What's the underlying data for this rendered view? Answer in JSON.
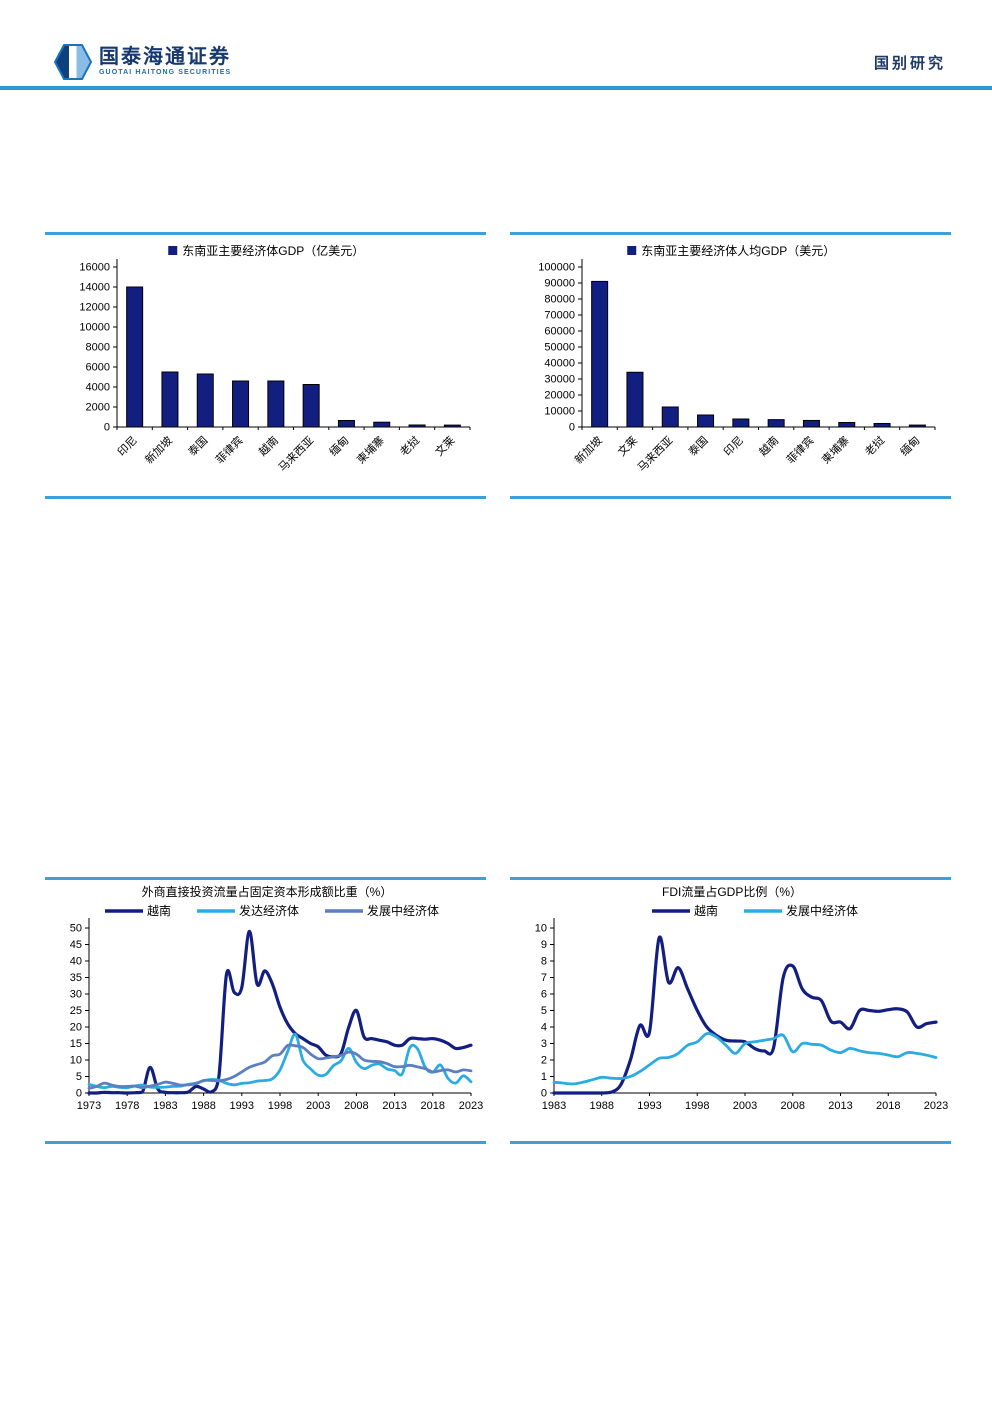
{
  "header": {
    "logo_title": "国泰海通证券",
    "logo_subtitle": "GUOTAI HAITONG SECURITIES",
    "section_label": "国别研究"
  },
  "colors": {
    "navy": "#131f80",
    "cyan": "#2aace2",
    "steel_blue": "#5b7fc0",
    "chart_border": "#3f9fd8",
    "header_rule": "#2c99d5",
    "header_text": "#1f3a68",
    "logo_text": "#16396e",
    "logo_subtext": "#1d6bb5"
  },
  "chart_data": [
    {
      "id": "gdp-bar",
      "type": "bar",
      "legend": "东南亚主要经济体GDP（亿美元）",
      "categories": [
        "印尼",
        "新加坡",
        "泰国",
        "菲律宾",
        "越南",
        "马来西亚",
        "缅甸",
        "柬埔寨",
        "老挝",
        "文莱"
      ],
      "values": [
        14000,
        5500,
        5300,
        4600,
        4600,
        4250,
        650,
        480,
        200,
        190
      ],
      "ylim": [
        0,
        16000
      ],
      "ytick_step": 2000,
      "bar_color_key": "navy",
      "grid": false,
      "legend_position": "top"
    },
    {
      "id": "gdp-per-capita-bar",
      "type": "bar",
      "legend": "东南亚主要经济体人均GDP（美元）",
      "categories": [
        "新加坡",
        "文莱",
        "马来西亚",
        "泰国",
        "印尼",
        "越南",
        "菲律宾",
        "柬埔寨",
        "老挝",
        "缅甸"
      ],
      "values": [
        91000,
        34200,
        12500,
        7500,
        5000,
        4600,
        4100,
        2800,
        2200,
        1200
      ],
      "ylim": [
        0,
        100000
      ],
      "ytick_step": 10000,
      "bar_color_key": "navy",
      "grid": false,
      "legend_position": "top"
    },
    {
      "id": "fdi-gfcf-line",
      "type": "line",
      "title": "外商直接投资流量占固定资本形成额比重（%）",
      "x_start": 1973,
      "x_end": 2023,
      "xtick_step": 5,
      "xtick_labels": [
        "1973",
        "1978",
        "1983",
        "1988",
        "1993",
        "1998",
        "2003",
        "2008",
        "2013",
        "2018",
        "2023"
      ],
      "ylim": [
        0,
        50
      ],
      "ytick_step": 5,
      "grid": false,
      "legend_position": "top",
      "series": [
        {
          "name": "越南",
          "color_key": "navy",
          "values": [
            0,
            0,
            0.2,
            0.1,
            0.1,
            0,
            0.1,
            0.3,
            7.8,
            1.2,
            0.2,
            0.1,
            0.1,
            0.3,
            2,
            1.2,
            0.3,
            5,
            36,
            30.5,
            32,
            49,
            33,
            37,
            33,
            26,
            21,
            18,
            16.5,
            15,
            14,
            11.5,
            11,
            12,
            20,
            25,
            17,
            16.5,
            16,
            15.5,
            14.5,
            14.5,
            16.5,
            16.5,
            16.3,
            16.5,
            16,
            15,
            13.5,
            13.8,
            14.5
          ]
        },
        {
          "name": "发达经济体",
          "color_key": "cyan",
          "values": [
            2.6,
            2,
            1.6,
            2,
            1.7,
            1.6,
            2.1,
            2.4,
            1.8,
            1.7,
            1.8,
            2,
            2.1,
            2.6,
            3,
            3.7,
            4.1,
            3.9,
            2.9,
            2.5,
            2.9,
            3.1,
            3.6,
            3.8,
            4.3,
            7,
            12.5,
            17.8,
            10,
            7.3,
            5.4,
            5.6,
            8.3,
            9.8,
            13.5,
            9.3,
            7.4,
            8.4,
            8.8,
            7.3,
            6.8,
            5.8,
            13.8,
            13.4,
            7.8,
            6.3,
            8.5,
            4.4,
            3,
            5.2,
            3.4
          ]
        },
        {
          "name": "发展中经济体",
          "color_key": "steel_blue",
          "values": [
            1.4,
            2,
            3,
            2.4,
            2,
            2,
            2.1,
            1.6,
            2.1,
            2.6,
            3.3,
            2.9,
            2.4,
            2.5,
            2.8,
            3.8,
            3.8,
            3.7,
            4.1,
            5,
            6.4,
            7.8,
            8.6,
            9.4,
            11.3,
            11.8,
            14.4,
            14.3,
            13.8,
            11.8,
            10.4,
            10.6,
            11,
            11.4,
            12.4,
            11.8,
            10,
            9.6,
            9.5,
            8.9,
            8,
            8,
            8.4,
            7.9,
            7.4,
            6.4,
            6.8,
            7,
            6.4,
            7,
            6.7
          ]
        }
      ]
    },
    {
      "id": "fdi-gdp-line",
      "type": "line",
      "title": "FDI流量占GDP比例（%）",
      "x_start": 1983,
      "x_end": 2023,
      "xtick_step": 5,
      "xtick_labels": [
        "1983",
        "1988",
        "1993",
        "1998",
        "2003",
        "2008",
        "2013",
        "2018",
        "2023"
      ],
      "ylim": [
        0,
        10
      ],
      "ytick_step": 1,
      "grid": false,
      "legend_position": "top",
      "series": [
        {
          "name": "越南",
          "color_key": "navy",
          "values": [
            0,
            0,
            0,
            0,
            0,
            0,
            0.05,
            0.5,
            2,
            4.1,
            3.7,
            9.4,
            6.7,
            7.6,
            6.3,
            5,
            4,
            3.5,
            3.2,
            3.15,
            3.1,
            2.7,
            2.55,
            2.75,
            7,
            7.7,
            6.3,
            5.8,
            5.6,
            4.35,
            4.3,
            3.9,
            5,
            5,
            4.95,
            5.05,
            5.1,
            4.9,
            4,
            4.2,
            4.3
          ]
        },
        {
          "name": "发展中经济体",
          "color_key": "cyan",
          "values": [
            0.65,
            0.6,
            0.55,
            0.65,
            0.8,
            0.95,
            0.9,
            0.88,
            1,
            1.3,
            1.7,
            2.1,
            2.15,
            2.4,
            2.9,
            3.1,
            3.6,
            3.4,
            2.9,
            2.4,
            3,
            3.1,
            3.2,
            3.3,
            3.5,
            2.5,
            3,
            2.95,
            2.9,
            2.6,
            2.45,
            2.7,
            2.55,
            2.45,
            2.4,
            2.3,
            2.2,
            2.45,
            2.4,
            2.3,
            2.15
          ]
        }
      ]
    }
  ]
}
